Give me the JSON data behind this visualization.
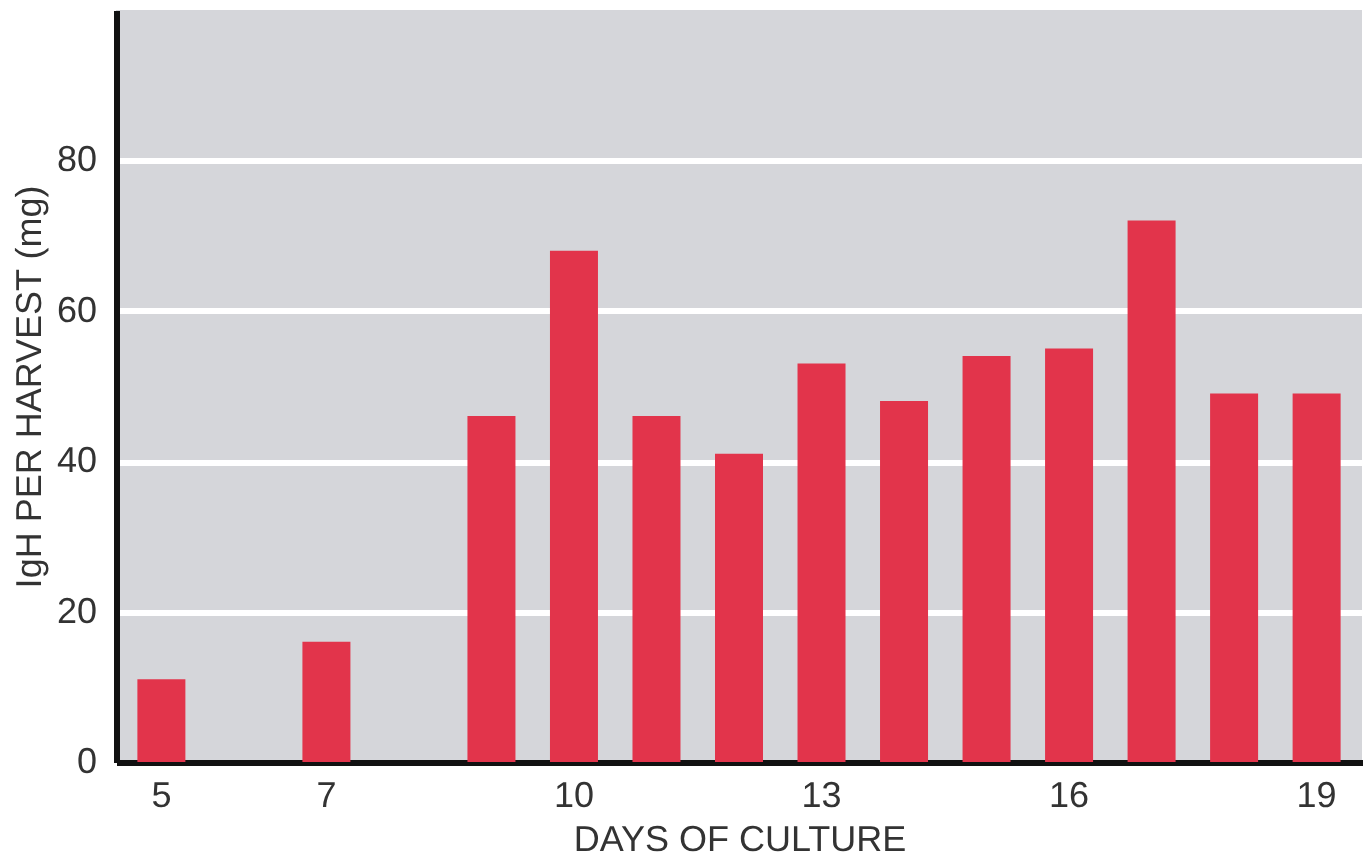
{
  "chart_data": {
    "type": "bar",
    "xlabel": "DAYS OF CULTURE",
    "ylabel": "IgH PER HARVEST (mg)",
    "categories": [
      "5",
      null,
      "7",
      null,
      null,
      "10",
      null,
      null,
      "13",
      null,
      null,
      "16",
      null,
      null,
      "19"
    ],
    "values": [
      11,
      null,
      16,
      null,
      46,
      68,
      46,
      41,
      53,
      48,
      54,
      55,
      72,
      49,
      49
    ],
    "color": "#e2344b",
    "ylim": [
      0,
      100
    ],
    "yticks": [
      0,
      20,
      40,
      60,
      80
    ],
    "grid": "y"
  }
}
